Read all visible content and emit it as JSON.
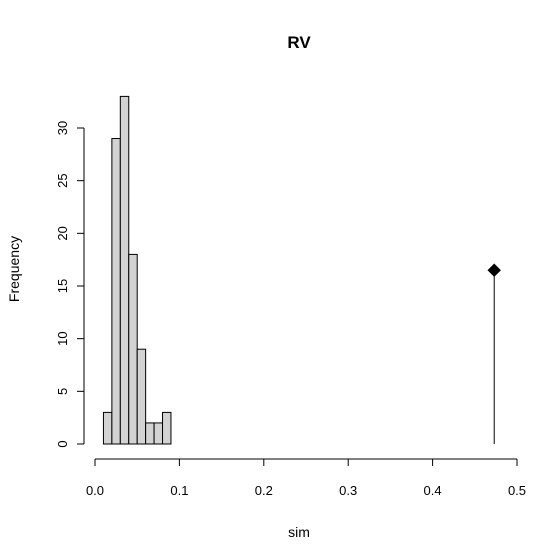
{
  "chart_data": {
    "type": "bar",
    "title": "RV",
    "xlabel": "sim",
    "ylabel": "Frequency",
    "xlim": [
      0,
      0.5
    ],
    "ylim": [
      0,
      33
    ],
    "grid": false,
    "x_ticks": [
      0.0,
      0.1,
      0.2,
      0.3,
      0.4,
      0.5
    ],
    "x_tick_labels": [
      "0.0",
      "0.1",
      "0.2",
      "0.3",
      "0.4",
      "0.5"
    ],
    "y_ticks": [
      0,
      5,
      10,
      15,
      20,
      25,
      30
    ],
    "y_tick_labels": [
      "0",
      "5",
      "10",
      "15",
      "20",
      "25",
      "30"
    ],
    "bins": [
      {
        "x0": 0.01,
        "x1": 0.02,
        "count": 3
      },
      {
        "x0": 0.02,
        "x1": 0.03,
        "count": 29
      },
      {
        "x0": 0.03,
        "x1": 0.04,
        "count": 33
      },
      {
        "x0": 0.04,
        "x1": 0.05,
        "count": 18
      },
      {
        "x0": 0.05,
        "x1": 0.06,
        "count": 9
      },
      {
        "x0": 0.06,
        "x1": 0.07,
        "count": 2
      },
      {
        "x0": 0.07,
        "x1": 0.08,
        "count": 2
      },
      {
        "x0": 0.08,
        "x1": 0.09,
        "count": 3
      }
    ],
    "observed": {
      "x": 0.473,
      "y": 16.5,
      "marker": "diamond"
    }
  }
}
